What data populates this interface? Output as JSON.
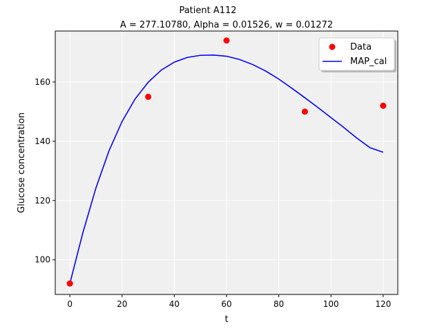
{
  "chart_data": {
    "type": "scatter",
    "title": "Patient A112",
    "subtitle": "A = 277.10780, Alpha = 0.01526, w = 0.01272",
    "xlabel": "t",
    "ylabel": "Glucose concentration",
    "xlim": [
      -5.6,
      125.6
    ],
    "ylim": [
      88.3,
      177.2
    ],
    "xticks": [
      0,
      20,
      40,
      60,
      80,
      100,
      120
    ],
    "yticks": [
      100,
      120,
      140,
      160
    ],
    "grid": true,
    "legend_position": "top-right",
    "series": [
      {
        "name": "Data",
        "kind": "scatter",
        "color": "#ff0000",
        "x": [
          0,
          30,
          60,
          90,
          120
        ],
        "y": [
          92,
          155,
          174,
          150,
          152
        ]
      },
      {
        "name": "MAP_cal",
        "kind": "line",
        "color": "#0000ff",
        "x": [
          0,
          5,
          10,
          15,
          20,
          25,
          30,
          35,
          40,
          45,
          50,
          55,
          60,
          65,
          70,
          75,
          80,
          85,
          90,
          95,
          100,
          105,
          110,
          115,
          120
        ],
        "y": [
          92,
          109.2,
          124.3,
          136.8,
          146.7,
          154.3,
          159.9,
          164.0,
          166.7,
          168.3,
          169.0,
          169.1,
          168.7,
          167.6,
          165.9,
          163.7,
          161.0,
          157.9,
          154.7,
          151.4,
          148.0,
          144.6,
          141.0,
          137.8,
          136.3
        ]
      }
    ]
  }
}
